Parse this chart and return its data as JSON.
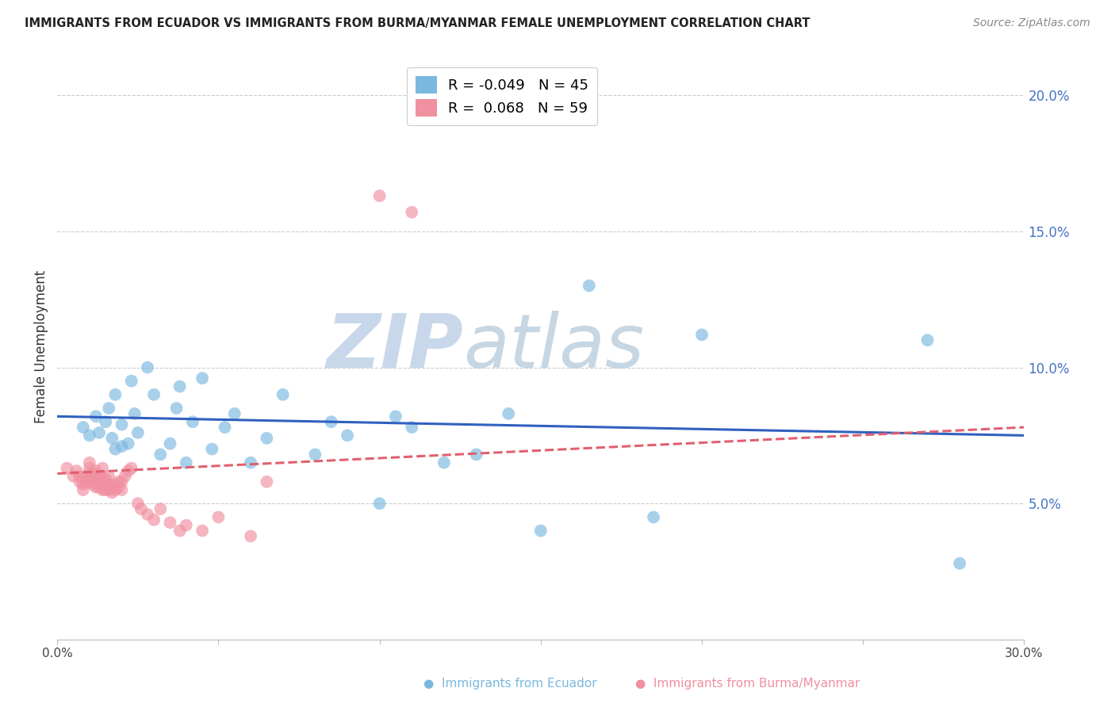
{
  "title": "IMMIGRANTS FROM ECUADOR VS IMMIGRANTS FROM BURMA/MYANMAR FEMALE UNEMPLOYMENT CORRELATION CHART",
  "source": "Source: ZipAtlas.com",
  "ylabel": "Female Unemployment",
  "xlim": [
    0.0,
    0.3
  ],
  "ylim": [
    0.0,
    0.215
  ],
  "yticks": [
    0.05,
    0.1,
    0.15,
    0.2
  ],
  "ytick_labels": [
    "5.0%",
    "10.0%",
    "15.0%",
    "20.0%"
  ],
  "xticks": [
    0.0,
    0.05,
    0.1,
    0.15,
    0.2,
    0.25,
    0.3
  ],
  "xtick_labels": [
    "0.0%",
    "",
    "",
    "",
    "",
    "",
    "30.0%"
  ],
  "ecuador_R": -0.049,
  "ecuador_N": 45,
  "burma_R": 0.068,
  "burma_N": 59,
  "ecuador_color": "#7bb8e0",
  "burma_color": "#f090a0",
  "ecuador_line_color": "#3060c0",
  "burma_line_color": "#e06070",
  "watermark_color": "#c8d8ea",
  "ecuador_x": [
    0.008,
    0.01,
    0.012,
    0.013,
    0.015,
    0.016,
    0.017,
    0.018,
    0.018,
    0.02,
    0.02,
    0.022,
    0.023,
    0.024,
    0.025,
    0.028,
    0.03,
    0.032,
    0.035,
    0.037,
    0.038,
    0.04,
    0.042,
    0.045,
    0.048,
    0.052,
    0.055,
    0.06,
    0.065,
    0.07,
    0.08,
    0.085,
    0.09,
    0.1,
    0.105,
    0.11,
    0.12,
    0.13,
    0.14,
    0.15,
    0.165,
    0.185,
    0.2,
    0.27,
    0.28
  ],
  "ecuador_y": [
    0.078,
    0.075,
    0.082,
    0.076,
    0.08,
    0.085,
    0.074,
    0.07,
    0.09,
    0.071,
    0.079,
    0.072,
    0.095,
    0.083,
    0.076,
    0.1,
    0.09,
    0.068,
    0.072,
    0.085,
    0.093,
    0.065,
    0.08,
    0.096,
    0.07,
    0.078,
    0.083,
    0.065,
    0.074,
    0.09,
    0.068,
    0.08,
    0.075,
    0.05,
    0.082,
    0.078,
    0.065,
    0.068,
    0.083,
    0.04,
    0.13,
    0.045,
    0.112,
    0.11,
    0.028
  ],
  "burma_x": [
    0.003,
    0.005,
    0.006,
    0.007,
    0.007,
    0.008,
    0.008,
    0.009,
    0.009,
    0.01,
    0.01,
    0.01,
    0.01,
    0.01,
    0.011,
    0.011,
    0.011,
    0.012,
    0.012,
    0.012,
    0.012,
    0.013,
    0.013,
    0.013,
    0.014,
    0.014,
    0.014,
    0.014,
    0.015,
    0.015,
    0.015,
    0.016,
    0.016,
    0.016,
    0.017,
    0.017,
    0.018,
    0.018,
    0.019,
    0.019,
    0.02,
    0.02,
    0.021,
    0.022,
    0.023,
    0.025,
    0.026,
    0.028,
    0.03,
    0.032,
    0.035,
    0.038,
    0.04,
    0.045,
    0.05,
    0.06,
    0.065,
    0.1,
    0.11
  ],
  "burma_y": [
    0.063,
    0.06,
    0.062,
    0.058,
    0.06,
    0.055,
    0.057,
    0.058,
    0.06,
    0.058,
    0.059,
    0.061,
    0.063,
    0.065,
    0.057,
    0.059,
    0.061,
    0.056,
    0.058,
    0.06,
    0.062,
    0.056,
    0.058,
    0.06,
    0.055,
    0.057,
    0.059,
    0.063,
    0.055,
    0.057,
    0.059,
    0.055,
    0.057,
    0.06,
    0.054,
    0.056,
    0.055,
    0.057,
    0.056,
    0.058,
    0.055,
    0.058,
    0.06,
    0.062,
    0.063,
    0.05,
    0.048,
    0.046,
    0.044,
    0.048,
    0.043,
    0.04,
    0.042,
    0.04,
    0.045,
    0.038,
    0.058,
    0.163,
    0.157
  ],
  "ecuador_line_y0": 0.082,
  "ecuador_line_y1": 0.075,
  "burma_line_y0": 0.061,
  "burma_line_y1": 0.078
}
